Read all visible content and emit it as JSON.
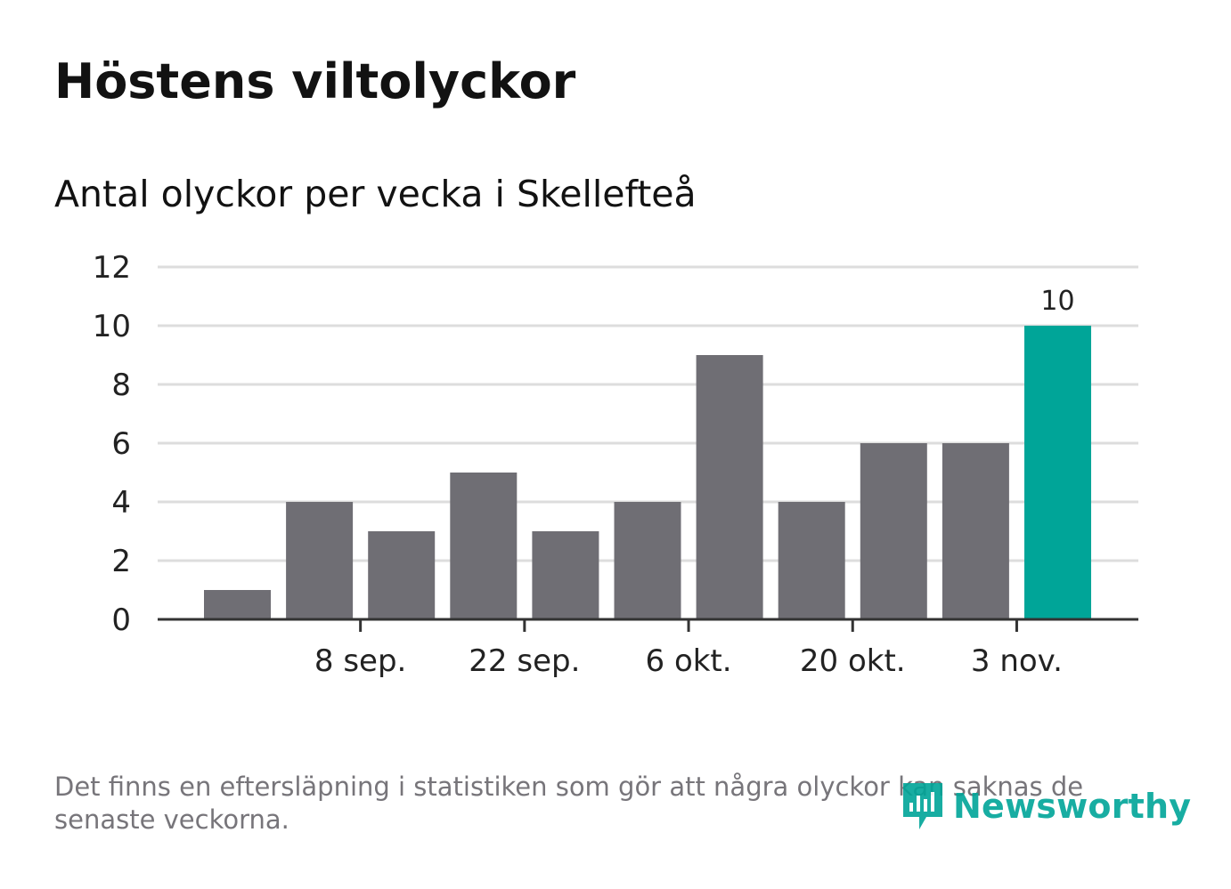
{
  "title": "Höstens viltolyckor",
  "subtitle": "Antal olyckor per vecka i Skellefteå",
  "footer": {
    "note": "Det finns en eftersläpning i statistiken som gör att några olyckor kan saknas de senaste veckorna.",
    "brand": "Newsworthy"
  },
  "colors": {
    "bar": "#6f6e74",
    "highlight": "#00a598",
    "grid": "#dddddd",
    "axis": "#333333",
    "footer_text": "#77757a"
  },
  "chart_data": {
    "type": "bar",
    "title": "Höstens viltolyckor",
    "subtitle": "Antal olyckor per vecka i Skellefteå",
    "values": [
      1,
      4,
      3,
      5,
      3,
      4,
      9,
      4,
      6,
      6,
      10
    ],
    "highlight_index": 10,
    "data_labels": [
      {
        "index": 10,
        "text": "10"
      }
    ],
    "x_ticks": [
      {
        "label": "8 sep.",
        "position": 1.5
      },
      {
        "label": "22 sep.",
        "position": 3.5
      },
      {
        "label": "6 okt.",
        "position": 5.5
      },
      {
        "label": "20 okt.",
        "position": 7.5
      },
      {
        "label": "3 nov.",
        "position": 9.5
      }
    ],
    "y_ticks": [
      0,
      2,
      4,
      6,
      8,
      10,
      12
    ],
    "ylim": [
      0,
      12
    ],
    "xlabel": "",
    "ylabel": "",
    "grid": true
  }
}
